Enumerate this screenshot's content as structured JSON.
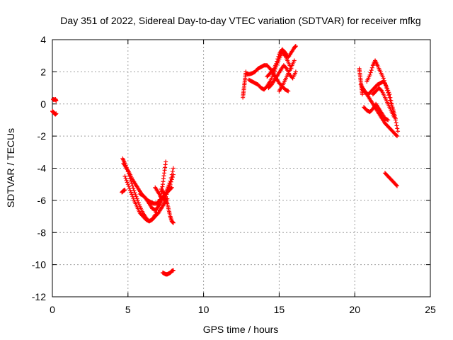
{
  "chart_data": {
    "type": "scatter",
    "title": "Day 351 of 2022, Sidereal Day-to-day VTEC variation (SDTVAR) for receiver mfkg",
    "xlabel": "GPS time / hours",
    "ylabel": "SDTVAR / TECUs",
    "xlim": [
      0,
      25
    ],
    "ylim": [
      -12,
      4
    ],
    "xticks": [
      0,
      5,
      10,
      15,
      20,
      25
    ],
    "yticks": [
      -12,
      -10,
      -8,
      -6,
      -4,
      -2,
      0,
      2,
      4
    ],
    "grid": true,
    "marker": "+",
    "color": "#ff0000",
    "series": [
      {
        "name": "SDTVAR",
        "tracks": [
          [
            [
              0.05,
              0.3
            ],
            [
              0.1,
              0.25
            ],
            [
              0.2,
              0.3
            ],
            [
              0.25,
              0.2
            ]
          ],
          [
            [
              0.0,
              -0.45
            ],
            [
              0.05,
              -0.5
            ],
            [
              0.1,
              -0.55
            ],
            [
              0.15,
              -0.6
            ],
            [
              0.2,
              -0.65
            ],
            [
              0.25,
              -0.6
            ]
          ],
          [
            [
              4.6,
              -5.5
            ],
            [
              4.7,
              -5.4
            ],
            [
              4.8,
              -5.35
            ]
          ],
          [
            [
              4.65,
              -3.4
            ],
            [
              4.8,
              -3.7
            ],
            [
              5.0,
              -4.2
            ],
            [
              5.2,
              -4.8
            ],
            [
              5.4,
              -5.4
            ],
            [
              5.6,
              -5.9
            ],
            [
              5.8,
              -6.4
            ],
            [
              6.0,
              -6.8
            ],
            [
              6.2,
              -7.1
            ],
            [
              6.4,
              -7.3
            ],
            [
              6.6,
              -7.2
            ],
            [
              6.8,
              -6.9
            ],
            [
              7.0,
              -6.3
            ],
            [
              7.2,
              -5.6
            ],
            [
              7.3,
              -5.0
            ],
            [
              7.4,
              -4.3
            ],
            [
              7.5,
              -3.6
            ]
          ],
          [
            [
              4.7,
              -3.7
            ],
            [
              4.9,
              -4.0
            ],
            [
              5.1,
              -4.3
            ],
            [
              5.3,
              -4.7
            ],
            [
              5.5,
              -5.0
            ],
            [
              5.7,
              -5.3
            ],
            [
              5.9,
              -5.6
            ],
            [
              6.1,
              -5.8
            ],
            [
              6.3,
              -6.0
            ],
            [
              6.5,
              -6.1
            ],
            [
              6.7,
              -6.2
            ],
            [
              6.9,
              -6.2
            ],
            [
              7.1,
              -6.0
            ],
            [
              7.3,
              -5.8
            ],
            [
              7.5,
              -5.6
            ],
            [
              7.7,
              -5.4
            ],
            [
              7.9,
              -5.2
            ]
          ],
          [
            [
              4.8,
              -4.5
            ],
            [
              5.0,
              -5.0
            ],
            [
              5.2,
              -5.5
            ],
            [
              5.4,
              -6.0
            ],
            [
              5.6,
              -6.4
            ],
            [
              5.8,
              -6.8
            ],
            [
              6.0,
              -7.0
            ],
            [
              6.2,
              -7.2
            ],
            [
              6.4,
              -7.3
            ],
            [
              6.6,
              -7.2
            ],
            [
              6.8,
              -7.0
            ],
            [
              7.0,
              -6.8
            ],
            [
              7.2,
              -6.5
            ],
            [
              7.4,
              -6.2
            ],
            [
              7.6,
              -5.9
            ]
          ],
          [
            [
              5.8,
              -5.6
            ],
            [
              6.0,
              -5.7
            ],
            [
              6.2,
              -5.9
            ],
            [
              6.4,
              -6.2
            ],
            [
              6.6,
              -6.5
            ],
            [
              6.8,
              -6.6
            ],
            [
              7.0,
              -6.4
            ],
            [
              7.2,
              -6.1
            ],
            [
              7.4,
              -5.7
            ],
            [
              7.6,
              -5.3
            ],
            [
              7.8,
              -4.8
            ],
            [
              8.0,
              -4.0
            ]
          ],
          [
            [
              7.2,
              -5.3
            ],
            [
              7.4,
              -5.6
            ],
            [
              7.5,
              -5.9
            ],
            [
              7.6,
              -6.2
            ],
            [
              7.7,
              -6.6
            ],
            [
              7.8,
              -7.0
            ],
            [
              7.9,
              -7.3
            ],
            [
              8.0,
              -7.4
            ]
          ],
          [
            [
              6.8,
              -5.2
            ],
            [
              7.0,
              -5.5
            ],
            [
              7.2,
              -5.8
            ],
            [
              7.4,
              -6.0
            ],
            [
              7.6,
              -5.5
            ],
            [
              7.8,
              -5.0
            ],
            [
              8.0,
              -4.4
            ]
          ],
          [
            [
              7.3,
              -10.5
            ],
            [
              7.4,
              -10.55
            ],
            [
              7.5,
              -10.6
            ],
            [
              7.6,
              -10.6
            ],
            [
              7.7,
              -10.55
            ],
            [
              7.8,
              -10.5
            ],
            [
              7.9,
              -10.4
            ],
            [
              8.0,
              -10.35
            ]
          ],
          [
            [
              12.6,
              0.4
            ],
            [
              12.65,
              0.8
            ],
            [
              12.7,
              1.2
            ],
            [
              12.75,
              1.6
            ],
            [
              12.8,
              2.0
            ]
          ],
          [
            [
              12.8,
              1.9
            ],
            [
              13.0,
              1.85
            ],
            [
              13.2,
              1.9
            ],
            [
              13.4,
              2.0
            ],
            [
              13.6,
              2.2
            ],
            [
              13.8,
              2.3
            ],
            [
              14.0,
              2.4
            ],
            [
              14.2,
              2.4
            ],
            [
              14.4,
              2.2
            ],
            [
              14.6,
              1.9
            ],
            [
              14.8,
              1.6
            ],
            [
              15.0,
              1.3
            ],
            [
              15.2,
              1.1
            ],
            [
              15.4,
              0.9
            ],
            [
              15.6,
              0.8
            ]
          ],
          [
            [
              13.0,
              1.5
            ],
            [
              13.2,
              1.4
            ],
            [
              13.4,
              1.3
            ],
            [
              13.6,
              1.2
            ],
            [
              13.8,
              1.0
            ],
            [
              14.0,
              0.9
            ],
            [
              14.2,
              1.1
            ],
            [
              14.4,
              1.4
            ],
            [
              14.6,
              1.8
            ],
            [
              14.8,
              2.3
            ],
            [
              15.0,
              2.8
            ],
            [
              15.2,
              3.2
            ],
            [
              15.4,
              3.0
            ],
            [
              15.6,
              2.6
            ],
            [
              15.8,
              2.2
            ]
          ],
          [
            [
              14.2,
              1.7
            ],
            [
              14.4,
              1.9
            ],
            [
              14.6,
              2.1
            ],
            [
              14.8,
              2.5
            ],
            [
              15.0,
              3.1
            ],
            [
              15.2,
              3.4
            ],
            [
              15.4,
              3.2
            ],
            [
              15.6,
              2.9
            ],
            [
              15.8,
              3.2
            ],
            [
              16.0,
              3.5
            ],
            [
              16.1,
              3.6
            ]
          ],
          [
            [
              14.3,
              1.0
            ],
            [
              14.5,
              1.2
            ],
            [
              14.7,
              1.5
            ],
            [
              14.9,
              1.8
            ],
            [
              15.1,
              2.1
            ],
            [
              15.3,
              2.4
            ],
            [
              15.5,
              2.2
            ],
            [
              15.7,
              1.8
            ],
            [
              15.9,
              1.6
            ],
            [
              16.1,
              2.0
            ]
          ],
          [
            [
              15.0,
              0.8
            ],
            [
              15.2,
              1.1
            ],
            [
              15.4,
              1.5
            ],
            [
              15.6,
              1.9
            ],
            [
              15.8,
              2.3
            ],
            [
              16.0,
              2.7
            ]
          ],
          [
            [
              20.3,
              2.2
            ],
            [
              20.35,
              1.8
            ],
            [
              20.4,
              1.4
            ],
            [
              20.45,
              1.0
            ],
            [
              20.5,
              0.6
            ]
          ],
          [
            [
              20.4,
              1.2
            ],
            [
              20.6,
              0.9
            ],
            [
              20.8,
              0.6
            ],
            [
              21.0,
              0.3
            ],
            [
              21.2,
              0.0
            ],
            [
              21.4,
              -0.3
            ],
            [
              21.6,
              -0.6
            ],
            [
              21.8,
              -0.9
            ],
            [
              22.0,
              -1.2
            ],
            [
              22.2,
              -1.4
            ],
            [
              22.4,
              -1.6
            ],
            [
              22.6,
              -1.8
            ],
            [
              22.8,
              -2.0
            ]
          ],
          [
            [
              20.5,
              0.9
            ],
            [
              20.7,
              0.7
            ],
            [
              20.9,
              0.6
            ],
            [
              21.1,
              0.8
            ],
            [
              21.3,
              1.0
            ],
            [
              21.5,
              1.2
            ],
            [
              21.7,
              1.3
            ],
            [
              21.9,
              1.4
            ],
            [
              22.1,
              1.1
            ],
            [
              22.3,
              0.6
            ],
            [
              22.5,
              -0.2
            ],
            [
              22.7,
              -0.9
            ]
          ],
          [
            [
              20.6,
              -0.2
            ],
            [
              20.8,
              -0.4
            ],
            [
              21.0,
              -0.5
            ],
            [
              21.2,
              -0.3
            ],
            [
              21.4,
              0.0
            ],
            [
              21.6,
              -0.3
            ],
            [
              21.8,
              -0.6
            ],
            [
              22.0,
              -0.9
            ],
            [
              22.2,
              -1.0
            ]
          ],
          [
            [
              20.8,
              1.4
            ],
            [
              21.0,
              1.8
            ],
            [
              21.2,
              2.4
            ],
            [
              21.35,
              2.7
            ],
            [
              21.5,
              2.4
            ],
            [
              21.7,
              2.0
            ],
            [
              21.9,
              1.6
            ],
            [
              22.1,
              1.0
            ],
            [
              22.3,
              0.4
            ],
            [
              22.5,
              -0.3
            ],
            [
              22.7,
              -1.0
            ],
            [
              22.85,
              -1.7
            ]
          ],
          [
            [
              21.2,
              0.6
            ],
            [
              21.4,
              0.8
            ],
            [
              21.6,
              1.0
            ],
            [
              21.8,
              0.8
            ],
            [
              22.0,
              0.4
            ],
            [
              22.2,
              0.0
            ],
            [
              22.4,
              -0.4
            ],
            [
              22.6,
              -0.8
            ]
          ],
          [
            [
              22.0,
              -4.3
            ],
            [
              22.2,
              -4.5
            ],
            [
              22.4,
              -4.7
            ],
            [
              22.6,
              -4.9
            ],
            [
              22.8,
              -5.1
            ]
          ]
        ]
      }
    ]
  }
}
